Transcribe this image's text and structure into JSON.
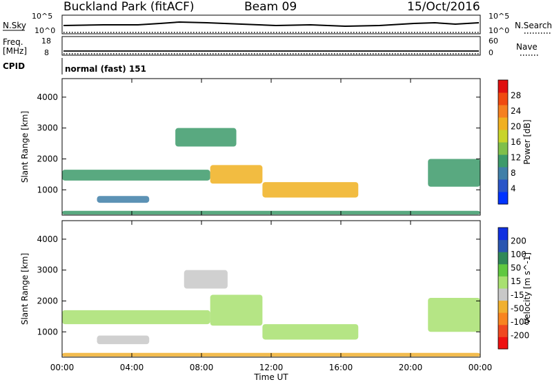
{
  "header": {
    "title": "Buckland Park (fitACF)",
    "beam": "Beam 09",
    "date": "15/Oct/2016"
  },
  "strips": {
    "nsky_label": "N.Sky",
    "nsearch_label": "N.Search",
    "nsky_ticks": [
      "10^5",
      "10^0"
    ],
    "nsearch_ticks": [
      "10^5",
      "10^0"
    ],
    "freq_label": "Freq.",
    "freq_unit": "[MHz]",
    "freq_ticks": [
      "18",
      "8"
    ],
    "nave_label": "Nave",
    "nave_ticks": [
      "60",
      "0"
    ],
    "cpid_label": "CPID",
    "cpid_value": "normal (fast) 151"
  },
  "colors": {
    "power": [
      "#0033ff",
      "#2a55c8",
      "#3f7fa8",
      "#3c9a6a",
      "#7fbf4a",
      "#c8d42a",
      "#f0b020",
      "#f58020",
      "#f04a10",
      "#e01010"
    ],
    "velocity": [
      "#ee1111",
      "#f04820",
      "#f88420",
      "#f0b030",
      "#c8c8c8",
      "#a8e070",
      "#60c840",
      "#308858",
      "#2a55b0",
      "#1030e0"
    ]
  },
  "chart_data": [
    {
      "type": "heatmap",
      "ylabel": "Slant Range [km]",
      "xlabel": "",
      "x_ticks": [
        "00:00",
        "04:00",
        "08:00",
        "12:00",
        "16:00",
        "20:00",
        "00:00"
      ],
      "xlim_hours": [
        0,
        24
      ],
      "y_ticks": [
        1000,
        2000,
        3000,
        4000
      ],
      "ylim": [
        180,
        4600
      ],
      "colorbar": {
        "label": "Power [dB]",
        "ticks": [
          "4",
          "8",
          "12",
          "16",
          "20",
          "24",
          "28"
        ],
        "range": [
          0,
          32
        ]
      },
      "regions": [
        {
          "from_h": 0.0,
          "to_h": 8.5,
          "range_start": 1300,
          "range_end": 1650,
          "value": 12
        },
        {
          "from_h": 8.5,
          "to_h": 11.5,
          "range_start": 1200,
          "range_end": 1800,
          "value": 20
        },
        {
          "from_h": 11.5,
          "to_h": 17.0,
          "range_start": 750,
          "range_end": 1250,
          "value": 22
        },
        {
          "from_h": 6.5,
          "to_h": 10.0,
          "range_start": 2400,
          "range_end": 3000,
          "value": 10
        },
        {
          "from_h": 2.0,
          "to_h": 5.0,
          "range_start": 580,
          "range_end": 800,
          "value": 8
        },
        {
          "from_h": 21.0,
          "to_h": 24.0,
          "range_start": 1100,
          "range_end": 2000,
          "value": 12
        },
        {
          "from_h": 0.0,
          "to_h": 24.0,
          "range_start": 200,
          "range_end": 320,
          "value": 12
        }
      ]
    },
    {
      "type": "heatmap",
      "ylabel": "Slant Range [km]",
      "xlabel": "Time UT",
      "x_ticks": [
        "00:00",
        "04:00",
        "08:00",
        "12:00",
        "16:00",
        "20:00",
        "00:00"
      ],
      "xlim_hours": [
        0,
        24
      ],
      "y_ticks": [
        1000,
        2000,
        3000,
        4000
      ],
      "ylim": [
        180,
        4600
      ],
      "colorbar": {
        "label": "Velocity [m s^-1]",
        "ticks": [
          "-200",
          "-100",
          "-50",
          "-15",
          "15",
          "50",
          "100",
          "200"
        ],
        "range": [
          -250,
          250
        ]
      },
      "regions": [
        {
          "from_h": 0.0,
          "to_h": 8.5,
          "range_start": 1250,
          "range_end": 1700,
          "value": 0
        },
        {
          "from_h": 8.5,
          "to_h": 11.5,
          "range_start": 1200,
          "range_end": 2200,
          "value": 0
        },
        {
          "from_h": 11.5,
          "to_h": 17.0,
          "range_start": 750,
          "range_end": 1250,
          "value": 30
        },
        {
          "from_h": 7.0,
          "to_h": 9.5,
          "range_start": 2400,
          "range_end": 3000,
          "value": -40
        },
        {
          "from_h": 2.0,
          "to_h": 5.0,
          "range_start": 600,
          "range_end": 880,
          "value": -30
        },
        {
          "from_h": 21.0,
          "to_h": 24.0,
          "range_start": 1000,
          "range_end": 2100,
          "value": 0
        },
        {
          "from_h": 0.0,
          "to_h": 24.0,
          "range_start": 200,
          "range_end": 320,
          "value": -60
        }
      ]
    }
  ]
}
